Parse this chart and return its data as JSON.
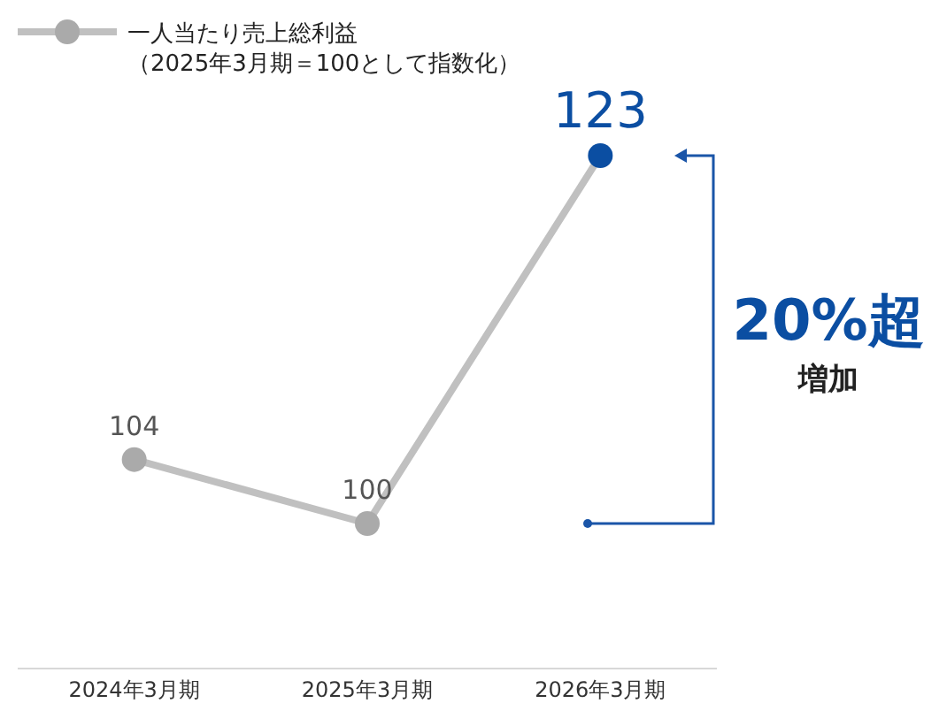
{
  "chart_data": {
    "type": "line",
    "categories": [
      "2024年3月期",
      "2025年3月期",
      "2026年3月期"
    ],
    "series": [
      {
        "name": "一人当たり売上総利益（2025年3月期＝100として指数化）",
        "color": "#c0c0c0",
        "values": [
          104,
          100,
          123
        ],
        "colors": [
          "#aaaaaa",
          "#aaaaaa",
          "#0b4ea2"
        ]
      }
    ],
    "tick_labels": "x",
    "data_labels": true,
    "marker": "circle",
    "legend": "top left",
    "annotations": [
      "20%超",
      "増加"
    ]
  }
}
